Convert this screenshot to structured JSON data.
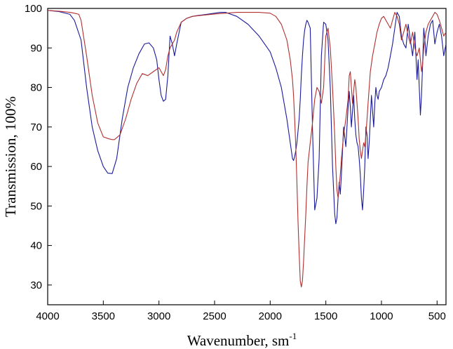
{
  "chart_data": {
    "type": "line",
    "title": "",
    "xlabel": "Wavenumber, sm",
    "xlabel_superscript": "-1",
    "ylabel": "Transmission, 100%",
    "xlim": [
      4000,
      420
    ],
    "ylim": [
      25,
      100
    ],
    "x_reversed": true,
    "x_ticks": [
      4000,
      3500,
      3000,
      2500,
      2000,
      1500,
      1000,
      500
    ],
    "y_ticks": [
      30,
      40,
      50,
      60,
      70,
      80,
      90,
      100
    ],
    "grid": false,
    "legend": "none",
    "series": [
      {
        "color": "#1a1a9c",
        "x": [
          4000,
          3900,
          3800,
          3760,
          3700,
          3650,
          3600,
          3550,
          3500,
          3460,
          3420,
          3380,
          3330,
          3280,
          3230,
          3180,
          3130,
          3090,
          3050,
          3020,
          3000,
          2980,
          2960,
          2940,
          2920,
          2900,
          2880,
          2860,
          2840,
          2800,
          2750,
          2700,
          2650,
          2600,
          2550,
          2500,
          2450,
          2400,
          2300,
          2200,
          2100,
          2000,
          1950,
          1900,
          1850,
          1820,
          1800,
          1790,
          1780,
          1770,
          1760,
          1750,
          1740,
          1730,
          1720,
          1710,
          1700,
          1690,
          1680,
          1670,
          1660,
          1640,
          1620,
          1600,
          1580,
          1560,
          1540,
          1520,
          1500,
          1480,
          1460,
          1440,
          1420,
          1410,
          1400,
          1390,
          1380,
          1370,
          1360,
          1340,
          1320,
          1300,
          1290,
          1280,
          1270,
          1260,
          1250,
          1240,
          1230,
          1220,
          1210,
          1200,
          1190,
          1180,
          1170,
          1160,
          1150,
          1140,
          1130,
          1120,
          1110,
          1100,
          1090,
          1080,
          1070,
          1060,
          1050,
          1040,
          1030,
          1020,
          1000,
          980,
          960,
          940,
          920,
          900,
          880,
          860,
          840,
          820,
          800,
          780,
          760,
          740,
          720,
          700,
          680,
          670,
          660,
          650,
          640,
          630,
          620,
          610,
          600,
          580,
          560,
          540,
          520,
          500,
          480,
          460,
          440,
          420
        ],
        "y": [
          99.5,
          99.2,
          98.5,
          97.0,
          92.0,
          80.0,
          70.0,
          64.0,
          60.0,
          58.3,
          58.2,
          62.0,
          72.0,
          80.0,
          85.0,
          88.5,
          91.0,
          91.3,
          90.0,
          87.0,
          82.0,
          78.0,
          76.5,
          77.0,
          83.0,
          93.0,
          91.0,
          88.0,
          91.0,
          96.5,
          97.5,
          98.0,
          98.2,
          98.4,
          98.6,
          98.8,
          99.0,
          99.0,
          98.0,
          96.0,
          93.0,
          89.0,
          85.0,
          80.0,
          72.0,
          66.0,
          62.0,
          61.5,
          62.5,
          64.0,
          66.0,
          69.0,
          72.0,
          77.0,
          83.0,
          88.0,
          92.0,
          94.5,
          96.0,
          97.0,
          96.5,
          95.0,
          70.0,
          49.0,
          52.0,
          62.0,
          88.0,
          96.5,
          96.0,
          92.0,
          80.0,
          60.0,
          48.0,
          45.5,
          47.0,
          52.0,
          56.0,
          53.0,
          58.0,
          70.0,
          65.0,
          75.0,
          79.0,
          75.0,
          70.0,
          74.0,
          78.0,
          72.0,
          68.0,
          66.0,
          65.0,
          62.0,
          58.0,
          52.0,
          49.0,
          54.0,
          60.0,
          70.0,
          68.0,
          62.0,
          66.0,
          72.0,
          78.0,
          74.0,
          70.0,
          76.0,
          80.0,
          78.0,
          77.0,
          79.0,
          80.0,
          82.0,
          83.0,
          85.0,
          88.0,
          91.0,
          95.0,
          99.0,
          98.0,
          93.0,
          91.0,
          90.0,
          96.0,
          92.0,
          88.0,
          94.0,
          82.0,
          87.0,
          80.0,
          73.0,
          78.0,
          86.0,
          95.0,
          92.0,
          88.0,
          93.0,
          96.0,
          97.0,
          91.0,
          94.0,
          96.0,
          93.0,
          88.0,
          91.0
        ]
      },
      {
        "color": "#b03030",
        "x": [
          4000,
          3900,
          3800,
          3760,
          3720,
          3700,
          3650,
          3600,
          3550,
          3500,
          3450,
          3420,
          3400,
          3350,
          3300,
          3250,
          3200,
          3150,
          3100,
          3050,
          3000,
          2980,
          2960,
          2940,
          2920,
          2900,
          2880,
          2860,
          2840,
          2800,
          2750,
          2700,
          2600,
          2500,
          2400,
          2300,
          2200,
          2100,
          2000,
          1950,
          1900,
          1850,
          1820,
          1800,
          1790,
          1780,
          1770,
          1760,
          1750,
          1740,
          1730,
          1720,
          1710,
          1700,
          1690,
          1680,
          1670,
          1660,
          1640,
          1620,
          1600,
          1580,
          1560,
          1540,
          1520,
          1500,
          1480,
          1460,
          1440,
          1420,
          1410,
          1400,
          1390,
          1380,
          1370,
          1360,
          1340,
          1320,
          1300,
          1290,
          1280,
          1270,
          1260,
          1250,
          1240,
          1230,
          1220,
          1210,
          1200,
          1190,
          1180,
          1170,
          1160,
          1150,
          1140,
          1130,
          1120,
          1100,
          1080,
          1060,
          1040,
          1020,
          1000,
          980,
          960,
          940,
          920,
          900,
          880,
          860,
          840,
          820,
          800,
          780,
          760,
          740,
          720,
          700,
          680,
          660,
          650,
          640,
          630,
          620,
          600,
          580,
          560,
          540,
          520,
          500,
          480,
          460,
          440,
          420
        ],
        "y": [
          99.5,
          99.3,
          99.0,
          98.8,
          98.5,
          97.0,
          88.0,
          78.0,
          71.0,
          67.5,
          67.0,
          66.8,
          66.8,
          68.0,
          72.0,
          77.0,
          81.0,
          83.5,
          83.0,
          84.0,
          85.0,
          84.0,
          83.0,
          84.5,
          88.0,
          90.0,
          91.0,
          92.0,
          94.0,
          96.5,
          97.5,
          98.0,
          98.3,
          98.6,
          98.8,
          99.0,
          99.0,
          99.0,
          98.8,
          98.0,
          96.0,
          92.0,
          87.0,
          82.0,
          78.0,
          72.0,
          65.0,
          56.0,
          46.0,
          38.0,
          31.0,
          29.5,
          31.0,
          36.0,
          42.0,
          48.0,
          55.0,
          61.0,
          66.0,
          71.0,
          77.0,
          80.0,
          79.0,
          76.0,
          80.0,
          93.0,
          95.0,
          90.0,
          80.0,
          68.0,
          60.0,
          54.0,
          52.0,
          55.0,
          58.0,
          62.0,
          68.0,
          72.0,
          77.0,
          83.0,
          84.0,
          80.0,
          76.0,
          79.0,
          82.0,
          80.0,
          76.0,
          72.0,
          67.0,
          64.0,
          62.0,
          64.0,
          66.0,
          65.0,
          68.0,
          72.0,
          76.0,
          84.0,
          88.0,
          91.0,
          94.0,
          96.0,
          97.5,
          98.0,
          97.0,
          96.0,
          95.0,
          97.0,
          99.0,
          98.0,
          96.0,
          92.0,
          94.0,
          96.0,
          93.0,
          91.0,
          94.0,
          90.0,
          88.0,
          90.0,
          87.0,
          84.0,
          86.0,
          90.0,
          94.0,
          96.0,
          97.0,
          98.0,
          99.0,
          98.5,
          97.0,
          95.0,
          93.0,
          94.0
        ]
      }
    ]
  }
}
